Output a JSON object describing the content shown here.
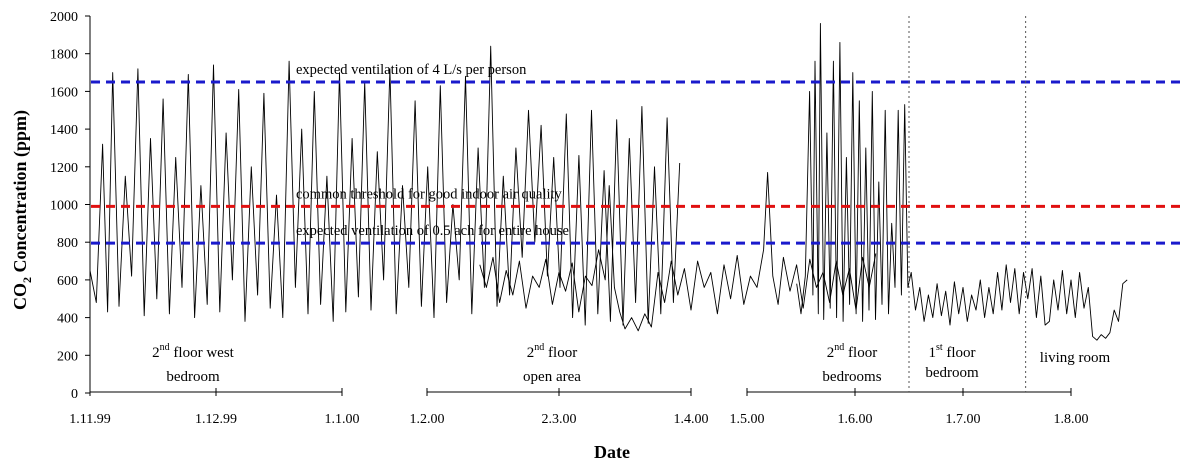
{
  "chart_data": {
    "type": "line",
    "xlabel": "Date",
    "ylabel": "CO₂ Concentration (ppm)",
    "ylabel_parts": {
      "pre": "CO",
      "sub": "2",
      "post": " Concentration (ppm)"
    },
    "ylim": [
      0,
      2000
    ],
    "yticks": [
      "0",
      "200",
      "400",
      "600",
      "800",
      "1000",
      "1200",
      "1400",
      "1600",
      "1800",
      "2000"
    ],
    "grid": false,
    "reference_lines": [
      {
        "label": "expected ventilation of 4 L/s per person",
        "value": 1650,
        "color": "#1a1acc"
      },
      {
        "label": "common threshold for good indoor air quality",
        "value": 990,
        "color": "#e01010"
      },
      {
        "label": "expected ventilation of 0.5 ach for entire house",
        "value": 795,
        "color": "#1a1acc"
      }
    ],
    "segments": [
      {
        "axis_ticks": [
          "1.11.99",
          "1.12.99",
          "1.1.00"
        ],
        "label": {
          "line1_base": "2",
          "line1_sup": "nd",
          "line1_rest": " floor west",
          "line2": "bedroom"
        },
        "series": [
          {
            "x": 0.0,
            "y": 650
          },
          {
            "x": 0.05,
            "y": 480
          },
          {
            "x": 0.1,
            "y": 1320
          },
          {
            "x": 0.14,
            "y": 430
          },
          {
            "x": 0.18,
            "y": 1700
          },
          {
            "x": 0.23,
            "y": 460
          },
          {
            "x": 0.28,
            "y": 1150
          },
          {
            "x": 0.33,
            "y": 620
          },
          {
            "x": 0.38,
            "y": 1720
          },
          {
            "x": 0.43,
            "y": 410
          },
          {
            "x": 0.48,
            "y": 1350
          },
          {
            "x": 0.53,
            "y": 500
          },
          {
            "x": 0.58,
            "y": 1560
          },
          {
            "x": 0.63,
            "y": 420
          },
          {
            "x": 0.68,
            "y": 1250
          },
          {
            "x": 0.73,
            "y": 560
          },
          {
            "x": 0.78,
            "y": 1690
          },
          {
            "x": 0.83,
            "y": 400
          },
          {
            "x": 0.88,
            "y": 1100
          },
          {
            "x": 0.93,
            "y": 470
          },
          {
            "x": 0.98,
            "y": 1740
          },
          {
            "x": 1.03,
            "y": 430
          },
          {
            "x": 1.08,
            "y": 1380
          },
          {
            "x": 1.13,
            "y": 600
          },
          {
            "x": 1.18,
            "y": 1610
          },
          {
            "x": 1.23,
            "y": 380
          },
          {
            "x": 1.28,
            "y": 1200
          },
          {
            "x": 1.33,
            "y": 520
          },
          {
            "x": 1.38,
            "y": 1590
          },
          {
            "x": 1.43,
            "y": 450
          },
          {
            "x": 1.48,
            "y": 1050
          },
          {
            "x": 1.53,
            "y": 400
          },
          {
            "x": 1.58,
            "y": 1760
          },
          {
            "x": 1.63,
            "y": 560
          },
          {
            "x": 1.68,
            "y": 1400
          },
          {
            "x": 1.73,
            "y": 420
          },
          {
            "x": 1.78,
            "y": 1600
          },
          {
            "x": 1.83,
            "y": 470
          },
          {
            "x": 1.88,
            "y": 1150
          },
          {
            "x": 1.93,
            "y": 380
          },
          {
            "x": 1.98,
            "y": 1700
          },
          {
            "x": 2.03,
            "y": 430
          },
          {
            "x": 2.08,
            "y": 1350
          },
          {
            "x": 2.13,
            "y": 510
          },
          {
            "x": 2.18,
            "y": 1650
          },
          {
            "x": 2.23,
            "y": 440
          },
          {
            "x": 2.28,
            "y": 1280
          },
          {
            "x": 2.33,
            "y": 600
          },
          {
            "x": 2.38,
            "y": 1720
          },
          {
            "x": 2.43,
            "y": 420
          },
          {
            "x": 2.48,
            "y": 1100
          },
          {
            "x": 2.53,
            "y": 560
          },
          {
            "x": 2.58,
            "y": 1550
          },
          {
            "x": 2.63,
            "y": 460
          },
          {
            "x": 2.68,
            "y": 1200
          },
          {
            "x": 2.73,
            "y": 400
          },
          {
            "x": 2.78,
            "y": 1630
          },
          {
            "x": 2.83,
            "y": 480
          },
          {
            "x": 2.88,
            "y": 1000
          },
          {
            "x": 2.93,
            "y": 600
          },
          {
            "x": 2.98,
            "y": 1680
          },
          {
            "x": 3.03,
            "y": 420
          },
          {
            "x": 3.08,
            "y": 1300
          },
          {
            "x": 3.13,
            "y": 560
          },
          {
            "x": 3.18,
            "y": 1840
          },
          {
            "x": 3.23,
            "y": 460
          },
          {
            "x": 3.28,
            "y": 1150
          },
          {
            "x": 3.33,
            "y": 520
          },
          {
            "x": 3.38,
            "y": 1300
          },
          {
            "x": 3.43,
            "y": 720
          },
          {
            "x": 3.48,
            "y": 1500
          },
          {
            "x": 3.53,
            "y": 800
          },
          {
            "x": 3.58,
            "y": 1420
          },
          {
            "x": 3.63,
            "y": 620
          },
          {
            "x": 3.68,
            "y": 1250
          },
          {
            "x": 3.73,
            "y": 560
          },
          {
            "x": 3.78,
            "y": 1480
          },
          {
            "x": 3.83,
            "y": 400
          },
          {
            "x": 3.88,
            "y": 1260
          },
          {
            "x": 3.93,
            "y": 360
          },
          {
            "x": 3.98,
            "y": 1500
          },
          {
            "x": 4.03,
            "y": 420
          },
          {
            "x": 4.08,
            "y": 1180
          },
          {
            "x": 4.13,
            "y": 380
          },
          {
            "x": 4.18,
            "y": 1450
          },
          {
            "x": 4.23,
            "y": 360
          },
          {
            "x": 4.28,
            "y": 1350
          },
          {
            "x": 4.33,
            "y": 480
          },
          {
            "x": 4.38,
            "y": 1520
          },
          {
            "x": 4.43,
            "y": 370
          },
          {
            "x": 4.48,
            "y": 1200
          },
          {
            "x": 4.53,
            "y": 420
          },
          {
            "x": 4.58,
            "y": 1460
          },
          {
            "x": 4.63,
            "y": 480
          },
          {
            "x": 4.68,
            "y": 1220
          }
        ]
      },
      {
        "axis_ticks": [
          "1.2.00",
          "2.3.00",
          "1.4.00"
        ],
        "label": {
          "line1_base": "2",
          "line1_sup": "nd",
          "line1_rest": " floor",
          "line2": "open area"
        },
        "series": [
          {
            "x": 0.4,
            "y": 680
          },
          {
            "x": 0.45,
            "y": 560
          },
          {
            "x": 0.5,
            "y": 720
          },
          {
            "x": 0.55,
            "y": 480
          },
          {
            "x": 0.6,
            "y": 650
          },
          {
            "x": 0.65,
            "y": 520
          },
          {
            "x": 0.7,
            "y": 700
          },
          {
            "x": 0.75,
            "y": 450
          },
          {
            "x": 0.8,
            "y": 620
          },
          {
            "x": 0.85,
            "y": 560
          },
          {
            "x": 0.9,
            "y": 710
          },
          {
            "x": 0.95,
            "y": 470
          },
          {
            "x": 1.0,
            "y": 640
          },
          {
            "x": 1.05,
            "y": 540
          },
          {
            "x": 1.1,
            "y": 690
          },
          {
            "x": 1.15,
            "y": 430
          },
          {
            "x": 1.2,
            "y": 620
          },
          {
            "x": 1.25,
            "y": 570
          },
          {
            "x": 1.3,
            "y": 760
          },
          {
            "x": 1.35,
            "y": 600
          },
          {
            "x": 1.38,
            "y": 1100
          },
          {
            "x": 1.42,
            "y": 560
          },
          {
            "x": 1.46,
            "y": 430
          },
          {
            "x": 1.5,
            "y": 340
          },
          {
            "x": 1.55,
            "y": 400
          },
          {
            "x": 1.6,
            "y": 330
          },
          {
            "x": 1.65,
            "y": 420
          },
          {
            "x": 1.7,
            "y": 350
          },
          {
            "x": 1.75,
            "y": 640
          },
          {
            "x": 1.8,
            "y": 480
          },
          {
            "x": 1.85,
            "y": 700
          },
          {
            "x": 1.9,
            "y": 520
          },
          {
            "x": 1.95,
            "y": 660
          },
          {
            "x": 2.0,
            "y": 440
          },
          {
            "x": 2.05,
            "y": 700
          },
          {
            "x": 2.1,
            "y": 560
          },
          {
            "x": 2.15,
            "y": 640
          },
          {
            "x": 2.2,
            "y": 420
          },
          {
            "x": 2.25,
            "y": 680
          },
          {
            "x": 2.3,
            "y": 500
          },
          {
            "x": 2.35,
            "y": 730
          },
          {
            "x": 2.4,
            "y": 470
          },
          {
            "x": 2.45,
            "y": 620
          },
          {
            "x": 2.5,
            "y": 560
          },
          {
            "x": 2.55,
            "y": 760
          },
          {
            "x": 2.58,
            "y": 1170
          },
          {
            "x": 2.62,
            "y": 620
          },
          {
            "x": 2.66,
            "y": 470
          },
          {
            "x": 2.7,
            "y": 720
          },
          {
            "x": 2.75,
            "y": 540
          },
          {
            "x": 2.8,
            "y": 680
          },
          {
            "x": 2.85,
            "y": 450
          },
          {
            "x": 2.9,
            "y": 710
          },
          {
            "x": 2.95,
            "y": 560
          },
          {
            "x": 3.0,
            "y": 640
          },
          {
            "x": 3.05,
            "y": 480
          },
          {
            "x": 3.1,
            "y": 700
          },
          {
            "x": 3.15,
            "y": 520
          },
          {
            "x": 3.2,
            "y": 660
          },
          {
            "x": 3.25,
            "y": 440
          },
          {
            "x": 3.3,
            "y": 720
          },
          {
            "x": 3.35,
            "y": 560
          },
          {
            "x": 3.4,
            "y": 740
          }
        ]
      },
      {
        "axis_ticks": [
          "1.5.00",
          "1.6.00",
          "1.7.00",
          "1.8.00"
        ],
        "label": {
          "line1_base": "2",
          "line1_sup": "nd",
          "line1_rest": " floor",
          "line2": "bedrooms"
        },
        "series": [
          {
            "x": 0.46,
            "y": 580
          },
          {
            "x": 0.5,
            "y": 420
          },
          {
            "x": 0.54,
            "y": 620
          },
          {
            "x": 0.58,
            "y": 1600
          },
          {
            "x": 0.61,
            "y": 520
          },
          {
            "x": 0.63,
            "y": 1760
          },
          {
            "x": 0.66,
            "y": 420
          },
          {
            "x": 0.68,
            "y": 1960
          },
          {
            "x": 0.71,
            "y": 390
          },
          {
            "x": 0.74,
            "y": 1380
          },
          {
            "x": 0.77,
            "y": 450
          },
          {
            "x": 0.8,
            "y": 1760
          },
          {
            "x": 0.83,
            "y": 400
          },
          {
            "x": 0.86,
            "y": 1860
          },
          {
            "x": 0.89,
            "y": 380
          },
          {
            "x": 0.92,
            "y": 1250
          },
          {
            "x": 0.95,
            "y": 470
          },
          {
            "x": 0.98,
            "y": 1700
          },
          {
            "x": 1.01,
            "y": 420
          },
          {
            "x": 1.04,
            "y": 1550
          },
          {
            "x": 1.07,
            "y": 380
          },
          {
            "x": 1.1,
            "y": 1300
          },
          {
            "x": 1.13,
            "y": 440
          },
          {
            "x": 1.16,
            "y": 1600
          },
          {
            "x": 1.19,
            "y": 390
          },
          {
            "x": 1.22,
            "y": 1120
          },
          {
            "x": 1.25,
            "y": 470
          },
          {
            "x": 1.28,
            "y": 1500
          },
          {
            "x": 1.31,
            "y": 420
          },
          {
            "x": 1.34,
            "y": 900
          },
          {
            "x": 1.37,
            "y": 560
          },
          {
            "x": 1.4,
            "y": 1500
          },
          {
            "x": 1.43,
            "y": 520
          },
          {
            "x": 1.46,
            "y": 1530
          },
          {
            "x": 1.49,
            "y": 560
          },
          {
            "x": 1.52,
            "y": 640
          },
          {
            "x": 1.56,
            "y": 440
          },
          {
            "x": 1.6,
            "y": 560
          },
          {
            "x": 1.64,
            "y": 380
          },
          {
            "x": 1.68,
            "y": 520
          },
          {
            "x": 1.72,
            "y": 400
          },
          {
            "x": 1.76,
            "y": 580
          },
          {
            "x": 1.8,
            "y": 410
          },
          {
            "x": 1.84,
            "y": 540
          },
          {
            "x": 1.88,
            "y": 360
          },
          {
            "x": 1.92,
            "y": 590
          },
          {
            "x": 1.96,
            "y": 420
          },
          {
            "x": 2.0,
            "y": 560
          },
          {
            "x": 2.04,
            "y": 380
          },
          {
            "x": 2.08,
            "y": 520
          },
          {
            "x": 2.12,
            "y": 440
          },
          {
            "x": 2.16,
            "y": 600
          },
          {
            "x": 2.2,
            "y": 400
          },
          {
            "x": 2.24,
            "y": 560
          },
          {
            "x": 2.28,
            "y": 420
          },
          {
            "x": 2.32,
            "y": 640
          },
          {
            "x": 2.36,
            "y": 440
          },
          {
            "x": 2.4,
            "y": 680
          },
          {
            "x": 2.44,
            "y": 480
          },
          {
            "x": 2.48,
            "y": 660
          },
          {
            "x": 2.52,
            "y": 420
          },
          {
            "x": 2.56,
            "y": 640
          },
          {
            "x": 2.6,
            "y": 500
          },
          {
            "x": 2.64,
            "y": 660
          },
          {
            "x": 2.68,
            "y": 400
          },
          {
            "x": 2.72,
            "y": 620
          },
          {
            "x": 2.76,
            "y": 360
          },
          {
            "x": 2.8,
            "y": 380
          },
          {
            "x": 2.84,
            "y": 600
          },
          {
            "x": 2.88,
            "y": 440
          },
          {
            "x": 2.92,
            "y": 650
          },
          {
            "x": 2.96,
            "y": 420
          },
          {
            "x": 3.0,
            "y": 600
          },
          {
            "x": 3.04,
            "y": 400
          },
          {
            "x": 3.08,
            "y": 640
          },
          {
            "x": 3.12,
            "y": 450
          },
          {
            "x": 3.16,
            "y": 560
          },
          {
            "x": 3.2,
            "y": 300
          },
          {
            "x": 3.24,
            "y": 280
          },
          {
            "x": 3.28,
            "y": 310
          },
          {
            "x": 3.32,
            "y": 290
          },
          {
            "x": 3.36,
            "y": 320
          },
          {
            "x": 3.4,
            "y": 440
          },
          {
            "x": 3.44,
            "y": 380
          },
          {
            "x": 3.48,
            "y": 580
          },
          {
            "x": 3.52,
            "y": 600
          }
        ]
      }
    ],
    "dividers": [
      {
        "after_segment": 2,
        "x": 1.5
      },
      {
        "after_segment": 2,
        "x": 2.58
      }
    ],
    "region_labels": [
      {
        "base": "1",
        "sup": "st",
        "rest": " floor",
        "line2": "bedroom"
      },
      {
        "text": "living room"
      }
    ]
  }
}
